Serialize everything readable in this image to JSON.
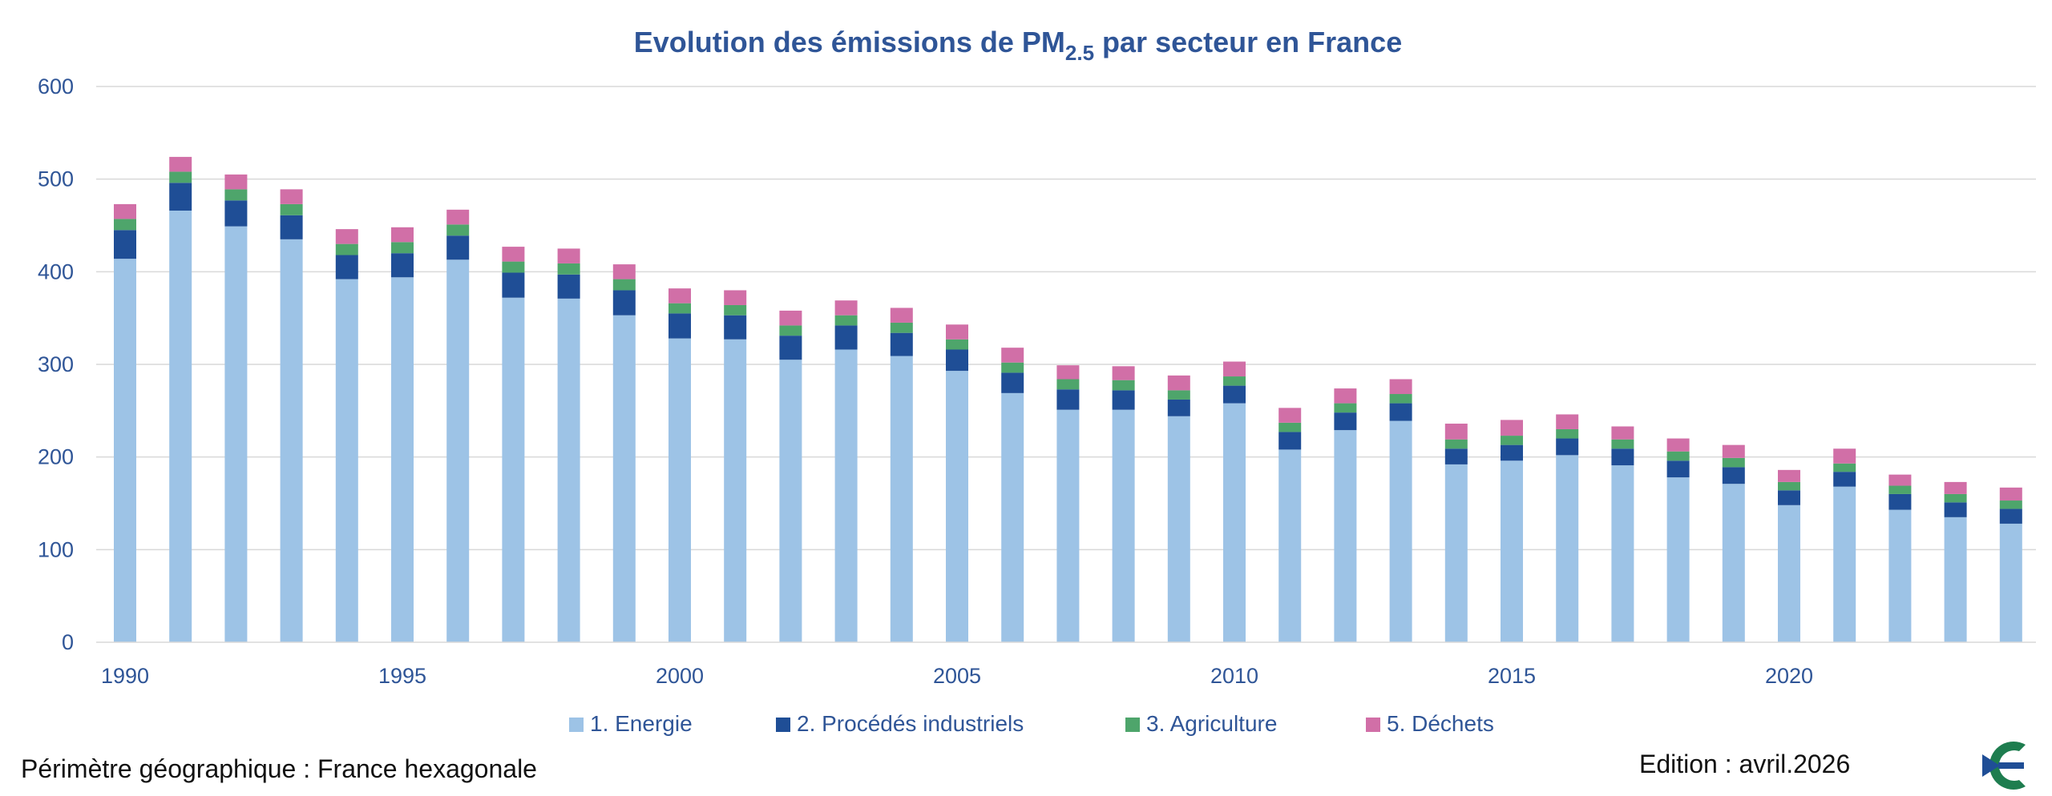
{
  "chart_data": {
    "type": "bar",
    "stacked": true,
    "title": {
      "main": "Evolution des émissions de PM",
      "sub": "2.5",
      "rest": " par secteur en France"
    },
    "x": [
      1990,
      1991,
      1992,
      1993,
      1994,
      1995,
      1996,
      1997,
      1998,
      1999,
      2000,
      2001,
      2002,
      2003,
      2004,
      2005,
      2006,
      2007,
      2008,
      2009,
      2010,
      2011,
      2012,
      2013,
      2014,
      2015,
      2016,
      2017,
      2018,
      2019,
      2020,
      2021,
      2022,
      2023,
      2024
    ],
    "x_tick_labels": [
      "1990",
      "1995",
      "2000",
      "2005",
      "2010",
      "2015",
      "2020"
    ],
    "x_tick_years": [
      1990,
      1995,
      2000,
      2005,
      2010,
      2015,
      2020
    ],
    "y_ticks": [
      0,
      100,
      200,
      300,
      400,
      500,
      600
    ],
    "y_tick_labels": [
      "0",
      "100",
      "200",
      "300",
      "400",
      "500",
      "600"
    ],
    "ylim": [
      0,
      600
    ],
    "grid": true,
    "legend_position": "bottom",
    "series": [
      {
        "name": "1. Energie",
        "color": "#9DC3E6",
        "values": [
          414,
          466,
          449,
          435,
          392,
          394,
          413,
          372,
          371,
          353,
          328,
          327,
          305,
          316,
          309,
          293,
          269,
          251,
          251,
          244,
          258,
          208,
          229,
          239,
          192,
          196,
          202,
          191,
          178,
          171,
          148,
          168,
          143,
          135,
          128
        ]
      },
      {
        "name": "2.  Procédés industriels",
        "color": "#1F4E96",
        "values": [
          31,
          30,
          28,
          26,
          26,
          26,
          26,
          27,
          26,
          27,
          27,
          26,
          26,
          26,
          25,
          23,
          22,
          22,
          21,
          18,
          19,
          19,
          19,
          19,
          17,
          17,
          18,
          18,
          18,
          18,
          16,
          16,
          17,
          16,
          16
        ]
      },
      {
        "name": "3.  Agriculture",
        "color": "#4EA56B",
        "values": [
          12,
          12,
          12,
          12,
          12,
          12,
          12,
          12,
          12,
          12,
          11,
          11,
          11,
          11,
          11,
          11,
          11,
          11,
          11,
          10,
          10,
          10,
          10,
          10,
          10,
          10,
          10,
          10,
          10,
          10,
          9,
          9,
          9,
          9,
          9
        ]
      },
      {
        "name": "5.  Déchets",
        "color": "#D16FA7",
        "values": [
          16,
          16,
          16,
          16,
          16,
          16,
          16,
          16,
          16,
          16,
          16,
          16,
          16,
          16,
          16,
          16,
          16,
          15,
          15,
          16,
          16,
          16,
          16,
          16,
          17,
          17,
          16,
          14,
          14,
          14,
          13,
          16,
          12,
          13,
          14
        ]
      }
    ]
  },
  "footer": {
    "left": "Périmètre géographique : France hexagonale",
    "right": "Edition : avril.2026"
  },
  "logo": {
    "icon": "citepa-logo",
    "colors": [
      "#1F4E96",
      "#1E7D4F"
    ]
  }
}
